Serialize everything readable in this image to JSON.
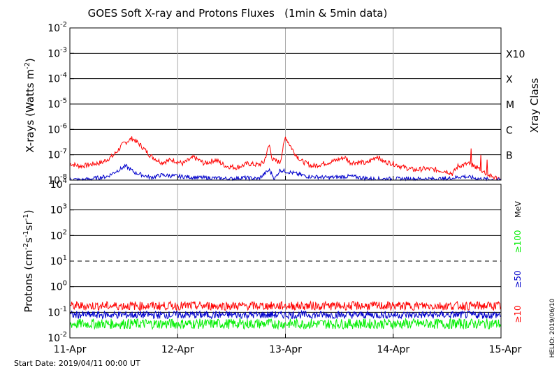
{
  "chart_data": [
    {
      "type": "line",
      "title": "GOES Soft X-ray and Protons Fluxes   (1min & 5min data)",
      "ylabel": "X-rays (Watts m-2)",
      "ylabel_base": "X-rays (Watts m",
      "ylabel_sup": "-2",
      "ylabel_end": ")",
      "yscale": "log",
      "ylim_exp": [
        -8,
        -2
      ],
      "ytick_exp": [
        -8,
        -7,
        -6,
        -5,
        -4,
        -3,
        -2
      ],
      "xlim": [
        0,
        4
      ],
      "right_axis_title": "Xray Class",
      "classes": [
        {
          "label": "B",
          "exp": -7
        },
        {
          "label": "C",
          "exp": -6
        },
        {
          "label": "M",
          "exp": -5
        },
        {
          "label": "X",
          "exp": -4
        },
        {
          "label": "X10",
          "exp": -3
        }
      ],
      "series": [
        {
          "color": "#ff0000",
          "noise": 0.1,
          "points": [
            [
              0,
              -7.35
            ],
            [
              0.1,
              -7.45
            ],
            [
              0.2,
              -7.38
            ],
            [
              0.3,
              -7.3
            ],
            [
              0.4,
              -7.05
            ],
            [
              0.5,
              -6.55
            ],
            [
              0.58,
              -6.35
            ],
            [
              0.65,
              -6.6
            ],
            [
              0.75,
              -7.05
            ],
            [
              0.85,
              -7.3
            ],
            [
              0.95,
              -7.2
            ],
            [
              1.05,
              -7.35
            ],
            [
              1.15,
              -7.1
            ],
            [
              1.25,
              -7.35
            ],
            [
              1.35,
              -7.2
            ],
            [
              1.45,
              -7.45
            ],
            [
              1.55,
              -7.5
            ],
            [
              1.65,
              -7.35
            ],
            [
              1.75,
              -7.4
            ],
            [
              1.8,
              -7.3
            ],
            [
              1.85,
              -6.6
            ],
            [
              1.88,
              -7.2
            ],
            [
              1.95,
              -7.3
            ],
            [
              2.0,
              -6.3
            ],
            [
              2.08,
              -6.9
            ],
            [
              2.15,
              -7.25
            ],
            [
              2.25,
              -7.45
            ],
            [
              2.35,
              -7.35
            ],
            [
              2.45,
              -7.25
            ],
            [
              2.55,
              -7.1
            ],
            [
              2.6,
              -7.3
            ],
            [
              2.7,
              -7.3
            ],
            [
              2.75,
              -7.35
            ],
            [
              2.85,
              -7.05
            ],
            [
              2.9,
              -7.25
            ],
            [
              3.0,
              -7.35
            ],
            [
              3.1,
              -7.5
            ],
            [
              3.2,
              -7.6
            ],
            [
              3.3,
              -7.55
            ],
            [
              3.4,
              -7.6
            ],
            [
              3.5,
              -7.65
            ],
            [
              3.55,
              -7.75
            ],
            [
              3.6,
              -7.45
            ],
            [
              3.7,
              -7.35
            ],
            [
              3.8,
              -7.55
            ],
            [
              3.9,
              -7.85
            ],
            [
              4.0,
              -7.95
            ]
          ]
        },
        {
          "color": "#0000cc",
          "noise": 0.08,
          "points": [
            [
              0,
              -7.95
            ],
            [
              0.1,
              -8.0
            ],
            [
              0.2,
              -7.95
            ],
            [
              0.35,
              -7.85
            ],
            [
              0.45,
              -7.6
            ],
            [
              0.52,
              -7.45
            ],
            [
              0.6,
              -7.7
            ],
            [
              0.75,
              -7.9
            ],
            [
              0.85,
              -7.8
            ],
            [
              1.0,
              -7.85
            ],
            [
              1.2,
              -7.9
            ],
            [
              1.5,
              -7.95
            ],
            [
              1.6,
              -7.9
            ],
            [
              1.75,
              -7.95
            ],
            [
              1.85,
              -7.6
            ],
            [
              1.9,
              -7.95
            ],
            [
              1.95,
              -7.6
            ],
            [
              2.05,
              -7.7
            ],
            [
              2.2,
              -7.85
            ],
            [
              2.4,
              -7.9
            ],
            [
              2.6,
              -7.85
            ],
            [
              2.8,
              -7.95
            ],
            [
              3.0,
              -7.95
            ],
            [
              3.3,
              -7.95
            ],
            [
              3.5,
              -7.95
            ],
            [
              3.65,
              -7.85
            ],
            [
              3.8,
              -7.95
            ],
            [
              4.0,
              -8.0
            ]
          ]
        }
      ]
    },
    {
      "type": "line",
      "ylabel": "Protons (cm-2s-1sr-1)",
      "yscale": "log",
      "ylim_exp": [
        -2,
        4
      ],
      "ytick_exp": [
        -2,
        -1,
        0,
        1,
        2,
        3,
        4
      ],
      "threshold_exp": 1,
      "xlim": [
        0,
        4
      ],
      "unit": "MeV",
      "energies": [
        "≥10",
        "≥50",
        "≥100"
      ],
      "series": [
        {
          "name": "≥10",
          "color": "#ff0000",
          "level_exp": -0.75,
          "spread": 0.17
        },
        {
          "name": "≥50",
          "color": "#0000cc",
          "level_exp": -1.1,
          "spread": 0.15
        },
        {
          "name": "≥100",
          "color": "#00ee00",
          "level_exp": -1.45,
          "spread": 0.2
        }
      ]
    }
  ],
  "x_ticks": [
    "11-Apr",
    "12-Apr",
    "13-Apr",
    "14-Apr",
    "15-Apr"
  ],
  "start_date": "Start Date: 2019/04/11 00:00 UT",
  "helio": "HELIO: 2019/06/10",
  "proton_label_parts": {
    "base": "Protons (cm",
    "e1": "-2",
    "s": "s",
    "e2": "-1",
    "sr": "sr",
    "e3": "-1",
    "end": ")"
  },
  "colors": {
    "grid_major": "#000000",
    "grid_day": "#aaaaaa"
  }
}
